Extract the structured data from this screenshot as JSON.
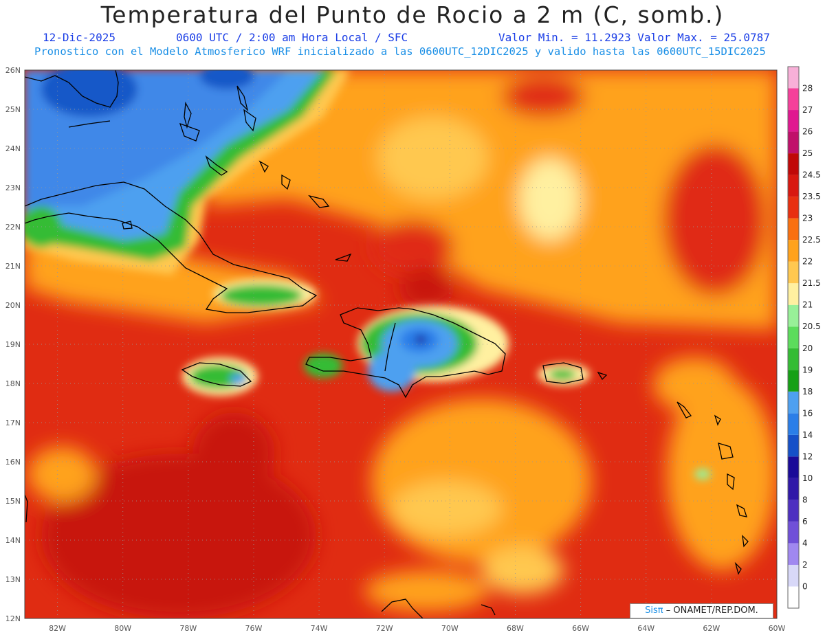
{
  "title": "Temperatura del Punto de Rocio a 2 m (C, somb.)",
  "date": "12-Dic-2025",
  "time_info": "0600 UTC / 2:00 am Hora Local / SFC",
  "min_max": "Valor Min. = 11.2923  Valor Max. = 25.0787",
  "model_info": "Pronostico con el Modelo Atmosferico WRF inicializado a las 0600UTC_12DIC2025 y valido hasta las  0600UTC_15DIC2025",
  "credit": {
    "brand": "Sisπ",
    "text": "– ONAMET/REP.DOM."
  },
  "map": {
    "lon_min": -83,
    "lon_max": -60,
    "lat_min": 12,
    "lat_max": 26,
    "lon_ticks": [
      "82W",
      "80W",
      "78W",
      "76W",
      "74W",
      "72W",
      "70W",
      "68W",
      "66W",
      "64W",
      "62W",
      "60W"
    ],
    "lat_ticks": [
      "12N",
      "13N",
      "14N",
      "15N",
      "16N",
      "17N",
      "18N",
      "19N",
      "20N",
      "21N",
      "22N",
      "23N",
      "24N",
      "25N",
      "26N"
    ]
  },
  "colorbar": {
    "levels": [
      "0",
      "2",
      "4",
      "6",
      "8",
      "10",
      "12",
      "14",
      "16",
      "18",
      "19",
      "20",
      "20.5",
      "21",
      "21.5",
      "22",
      "22.5",
      "23",
      "23.5",
      "24.5",
      "25",
      "26",
      "27",
      "28"
    ],
    "colors": [
      "#ffffff",
      "#d8d8f8",
      "#a088f0",
      "#7050d8",
      "#4d30c0",
      "#3018a8",
      "#1a0a98",
      "#1550c8",
      "#2a7ee8",
      "#4ea0f0",
      "#16a016",
      "#34bc34",
      "#5cdc5c",
      "#98f098",
      "#fff0a0",
      "#ffc850",
      "#ffa21c",
      "#f97010",
      "#e83010",
      "#d81810",
      "#c00808",
      "#c0106a",
      "#e01890",
      "#f5409a",
      "#f8b0d8"
    ]
  },
  "colors": {
    "title": "#222222",
    "subtitle": "#1a3de6",
    "model_info": "#1a8fe6",
    "coast": "#000000"
  }
}
